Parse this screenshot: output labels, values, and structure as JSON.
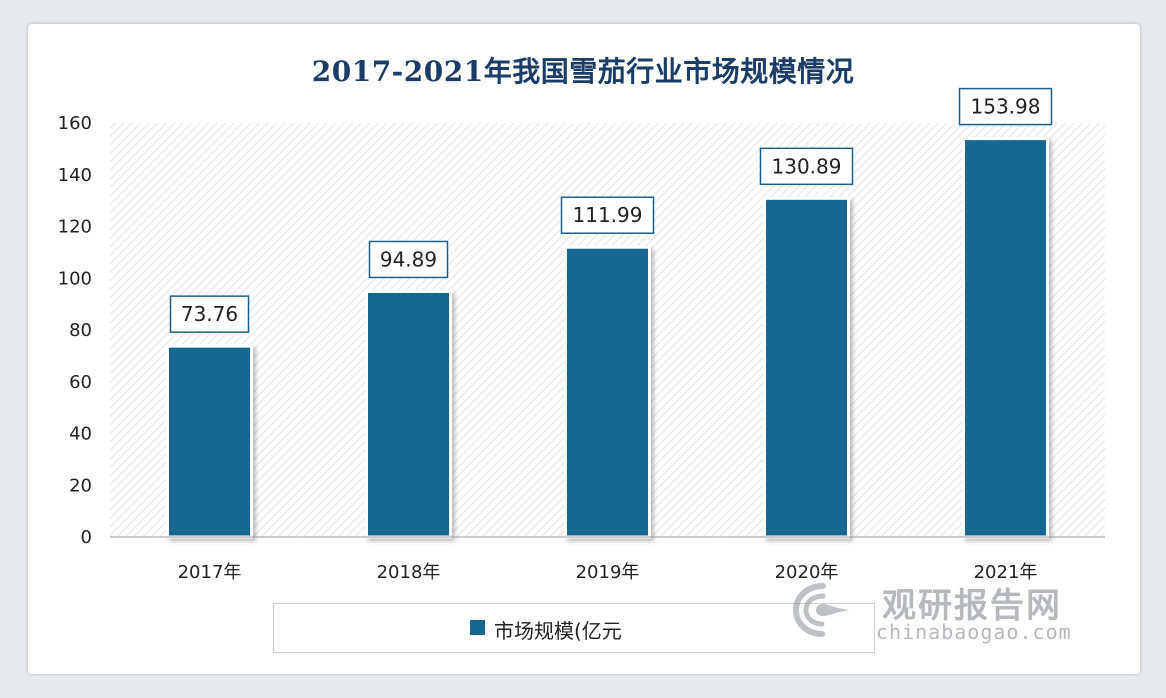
{
  "chart_data": {
    "type": "bar",
    "title": "2017-2021年我国雪茄行业市场规模情况",
    "categories": [
      "2017年",
      "2018年",
      "2019年",
      "2020年",
      "2021年"
    ],
    "series": [
      {
        "name": "市场规模(亿元",
        "values": [
          73.76,
          94.89,
          111.99,
          130.89,
          153.98
        ]
      }
    ],
    "data_labels": [
      "73.76",
      "94.89",
      "111.99",
      "130.89",
      "153.98"
    ],
    "yticks": [
      "0",
      "20",
      "40",
      "60",
      "80",
      "100",
      "120",
      "140",
      "160"
    ],
    "ylim": [
      0,
      160
    ],
    "grid": false,
    "legend_position": "bottom",
    "bar_color": "#176891"
  },
  "watermark": {
    "cn": "观研报告网",
    "en": "chinabaogao.com"
  }
}
